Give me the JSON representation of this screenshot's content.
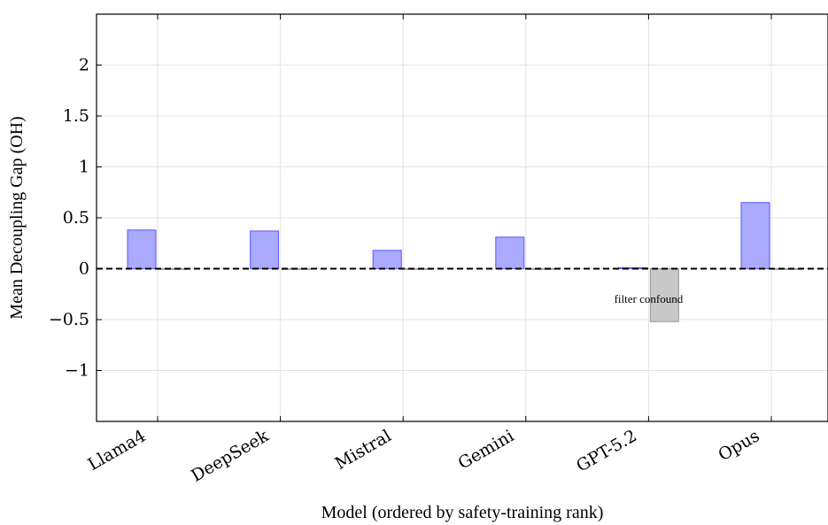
{
  "chart_data": {
    "type": "bar",
    "categories": [
      "Llama4",
      "DeepSeek",
      "Mistral",
      "Gemini",
      "GPT-5.2",
      "Opus"
    ],
    "series": [
      {
        "values": [
          0.38,
          0.37,
          0.18,
          0.31,
          0.01,
          0.65
        ],
        "color": "#aaaaff",
        "stroke": "#5555ff"
      },
      {
        "values": [
          0,
          0,
          0,
          0,
          -0.52,
          0
        ],
        "color": "#c8c8c8",
        "stroke": "#999999"
      }
    ],
    "xlabel": "Model (ordered by safety-training rank)",
    "ylabel": "Mean Decoupling Gap (OH)",
    "ylim": [
      -1.5,
      2.5
    ],
    "yticks": [
      -1,
      -0.5,
      0,
      0.5,
      1,
      1.5,
      2
    ],
    "ytick_labels": [
      "−1",
      "−0.5",
      "0",
      "0.5",
      "1",
      "1.5",
      "2"
    ],
    "reference_line": {
      "y": 0,
      "style": "dashed"
    },
    "annotations": [
      {
        "text": "filter confound",
        "category": "GPT-5.2",
        "y": -0.3
      }
    ],
    "grid": true,
    "legend": "none"
  }
}
